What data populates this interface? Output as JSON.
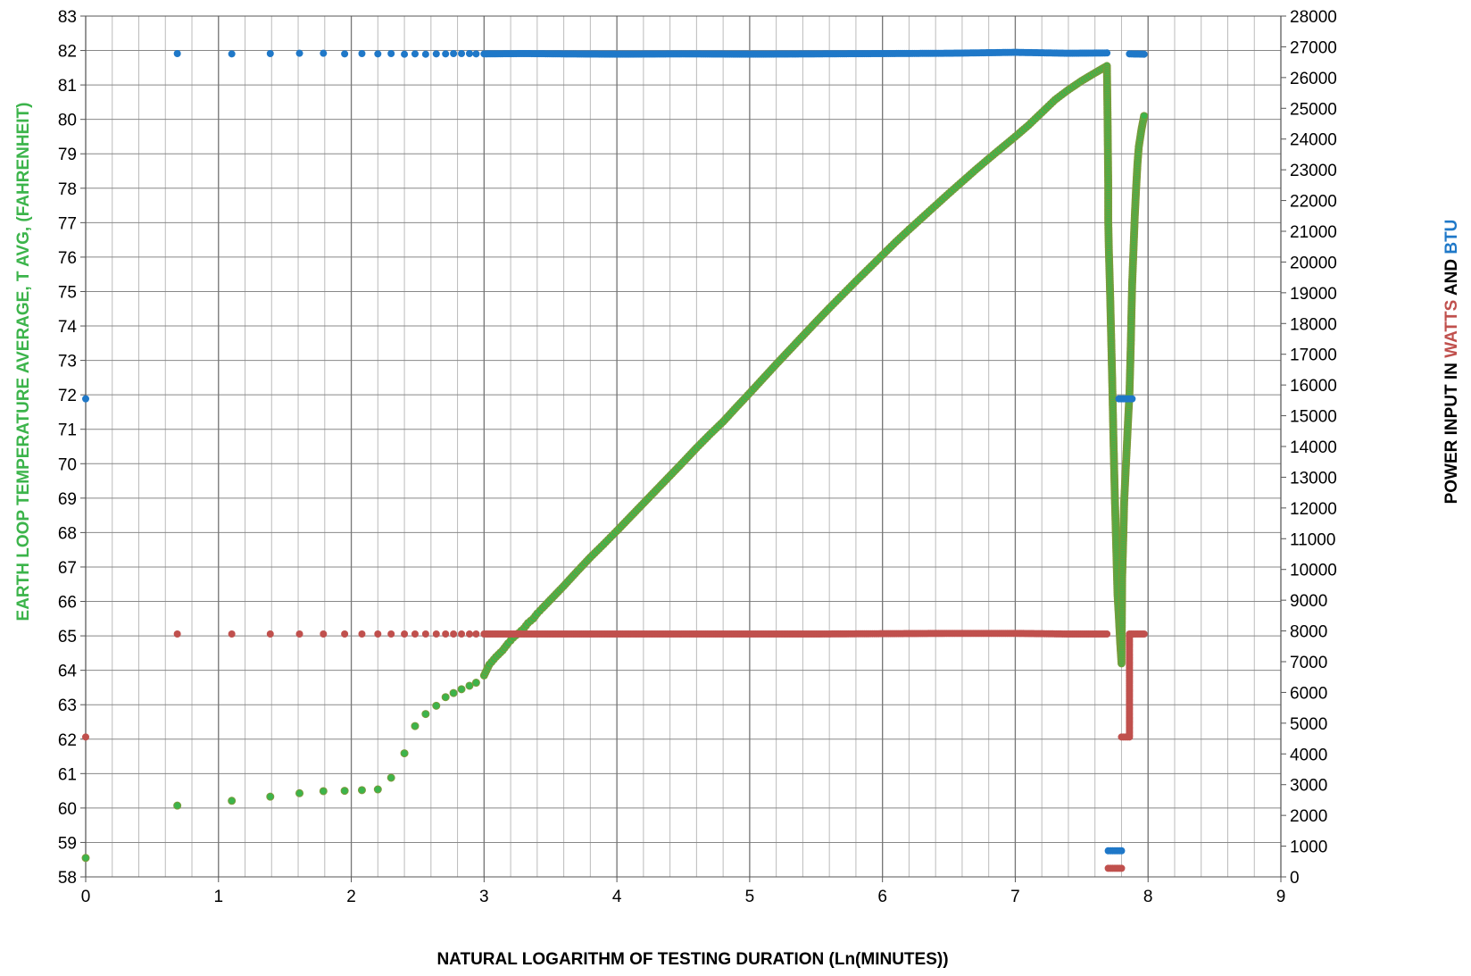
{
  "chart_data": {
    "type": "scatter",
    "xlabel": "NATURAL LOGARITHM OF TESTING DURATION (Ln(MINUTES))",
    "ylabel_left": "EARTH LOOP TEMPERATURE AVERAGE, T AVG, (FAHRENHEIT)",
    "ylabel_right": {
      "prefix": "POWER INPUT IN ",
      "watts": "WATTS",
      "middle": " AND ",
      "btu": "BTU"
    },
    "xlim": [
      0,
      9
    ],
    "ylim_left": [
      58,
      83
    ],
    "ylim_right": [
      0,
      28000
    ],
    "x_ticks": [
      "0",
      "1",
      "2",
      "3",
      "4",
      "5",
      "6",
      "7",
      "8",
      "9"
    ],
    "y_left_ticks": [
      "58",
      "59",
      "60",
      "61",
      "62",
      "63",
      "64",
      "65",
      "66",
      "67",
      "68",
      "69",
      "70",
      "71",
      "72",
      "73",
      "74",
      "75",
      "76",
      "77",
      "78",
      "79",
      "80",
      "81",
      "82",
      "83"
    ],
    "y_right_ticks": [
      "0",
      "1000",
      "2000",
      "3000",
      "4000",
      "5000",
      "6000",
      "7000",
      "8000",
      "9000",
      "10000",
      "11000",
      "12000",
      "13000",
      "14000",
      "15000",
      "16000",
      "17000",
      "18000",
      "19000",
      "20000",
      "21000",
      "22000",
      "23000",
      "24000",
      "25000",
      "26000",
      "27000",
      "28000"
    ],
    "grid": true,
    "colors": {
      "temperature": "#3cb44b",
      "temperature_edge": "#7a9a3a",
      "watts": "#c0504d",
      "btu": "#1f78c8",
      "grid_major": "#888888",
      "grid_minor": "#bbbbbb"
    },
    "series": [
      {
        "axis": "left",
        "color": "#3cb44b",
        "points": [
          [
            0,
            58.55
          ],
          [
            0.69,
            60.07
          ],
          [
            1.1,
            60.21
          ],
          [
            1.39,
            60.33
          ],
          [
            1.61,
            60.43
          ],
          [
            1.79,
            60.49
          ],
          [
            1.95,
            60.5
          ],
          [
            2.08,
            60.52
          ],
          [
            2.2,
            60.54
          ],
          [
            2.3,
            60.88
          ],
          [
            2.4,
            61.59
          ],
          [
            2.48,
            62.38
          ],
          [
            2.56,
            62.73
          ],
          [
            2.64,
            62.97
          ],
          [
            2.71,
            63.22
          ],
          [
            2.77,
            63.34
          ],
          [
            2.83,
            63.45
          ],
          [
            2.89,
            63.55
          ],
          [
            2.94,
            63.64
          ],
          [
            3.0,
            63.85
          ],
          [
            3.04,
            64.17
          ],
          [
            3.09,
            64.39
          ],
          [
            3.14,
            64.58
          ],
          [
            3.18,
            64.78
          ],
          [
            3.22,
            64.95
          ],
          [
            3.26,
            65.08
          ],
          [
            3.3,
            65.22
          ],
          [
            3.33,
            65.37
          ],
          [
            3.37,
            65.5
          ],
          [
            3.4,
            65.65
          ],
          [
            3.44,
            65.81
          ],
          [
            3.5,
            66.05
          ],
          [
            3.6,
            66.45
          ],
          [
            3.7,
            66.87
          ],
          [
            3.8,
            67.28
          ],
          [
            3.9,
            67.66
          ],
          [
            4.0,
            68.05
          ],
          [
            4.1,
            68.45
          ],
          [
            4.2,
            68.85
          ],
          [
            4.3,
            69.25
          ],
          [
            4.4,
            69.65
          ],
          [
            4.5,
            70.05
          ],
          [
            4.6,
            70.46
          ],
          [
            4.7,
            70.85
          ],
          [
            4.8,
            71.22
          ],
          [
            4.9,
            71.64
          ],
          [
            5.0,
            72.05
          ],
          [
            5.1,
            72.47
          ],
          [
            5.2,
            72.89
          ],
          [
            5.3,
            73.3
          ],
          [
            5.4,
            73.71
          ],
          [
            5.5,
            74.12
          ],
          [
            5.6,
            74.52
          ],
          [
            5.7,
            74.91
          ],
          [
            5.8,
            75.3
          ],
          [
            5.9,
            75.68
          ],
          [
            6.0,
            76.06
          ],
          [
            6.1,
            76.44
          ],
          [
            6.2,
            76.8
          ],
          [
            6.3,
            77.15
          ],
          [
            6.4,
            77.5
          ],
          [
            6.5,
            77.85
          ],
          [
            6.6,
            78.19
          ],
          [
            6.7,
            78.53
          ],
          [
            6.8,
            78.86
          ],
          [
            6.9,
            79.18
          ],
          [
            7.0,
            79.5
          ],
          [
            7.1,
            79.83
          ],
          [
            7.2,
            80.2
          ],
          [
            7.3,
            80.57
          ],
          [
            7.4,
            80.86
          ],
          [
            7.5,
            81.12
          ],
          [
            7.6,
            81.35
          ],
          [
            7.69,
            81.55
          ],
          [
            7.695,
            80.0
          ],
          [
            7.7,
            78.1
          ],
          [
            7.7,
            77.05
          ],
          [
            7.705,
            76.15
          ],
          [
            7.71,
            75.5
          ],
          [
            7.715,
            74.8
          ],
          [
            7.72,
            74.0
          ],
          [
            7.725,
            73.2
          ],
          [
            7.73,
            72.4
          ],
          [
            7.735,
            71.5
          ],
          [
            7.74,
            70.6
          ],
          [
            7.745,
            69.8
          ],
          [
            7.75,
            69.0
          ],
          [
            7.755,
            68.3
          ],
          [
            7.76,
            67.6
          ],
          [
            7.765,
            66.9
          ],
          [
            7.77,
            66.2
          ],
          [
            7.78,
            65.55
          ],
          [
            7.79,
            64.8
          ],
          [
            7.8,
            64.2
          ],
          [
            7.805,
            66.7
          ],
          [
            7.81,
            67.4
          ],
          [
            7.815,
            68.1
          ],
          [
            7.82,
            68.9
          ],
          [
            7.83,
            69.7
          ],
          [
            7.84,
            70.5
          ],
          [
            7.85,
            71.3
          ],
          [
            7.86,
            72.05
          ],
          [
            7.87,
            73.5
          ],
          [
            7.875,
            74.4
          ],
          [
            7.88,
            75.2
          ],
          [
            7.89,
            76.2
          ],
          [
            7.9,
            77.2
          ],
          [
            7.91,
            78.0
          ],
          [
            7.92,
            78.7
          ],
          [
            7.93,
            79.2
          ],
          [
            7.95,
            79.7
          ],
          [
            7.97,
            80.1
          ]
        ]
      },
      {
        "axis": "right",
        "color": "#c0504d",
        "points": [
          [
            0,
            4550
          ],
          [
            0.69,
            7900
          ],
          [
            1.1,
            7900
          ],
          [
            1.39,
            7900
          ],
          [
            1.61,
            7900
          ],
          [
            1.79,
            7900
          ],
          [
            1.95,
            7900
          ],
          [
            2.08,
            7900
          ],
          [
            2.2,
            7900
          ],
          [
            2.3,
            7900
          ],
          [
            2.4,
            7900
          ],
          [
            2.48,
            7900
          ],
          [
            2.56,
            7900
          ],
          [
            2.64,
            7900
          ],
          [
            2.71,
            7900
          ],
          [
            2.77,
            7900
          ],
          [
            2.83,
            7900
          ],
          [
            2.89,
            7900
          ],
          [
            2.94,
            7900
          ],
          [
            3.0,
            7900
          ],
          [
            3.3,
            7900
          ],
          [
            3.6,
            7900
          ],
          [
            4.0,
            7900
          ],
          [
            4.5,
            7900
          ],
          [
            5.0,
            7900
          ],
          [
            5.5,
            7900
          ],
          [
            6.0,
            7910
          ],
          [
            6.5,
            7920
          ],
          [
            7.0,
            7920
          ],
          [
            7.4,
            7900
          ],
          [
            7.69,
            7900
          ],
          [
            7.7,
            280
          ],
          [
            7.8,
            280
          ],
          [
            7.8,
            4550
          ],
          [
            7.86,
            4550
          ],
          [
            7.86,
            7900
          ],
          [
            7.97,
            7900
          ]
        ]
      },
      {
        "axis": "right",
        "color": "#1f78c8",
        "points": [
          [
            0,
            15550
          ],
          [
            0.69,
            26780
          ],
          [
            1.1,
            26770
          ],
          [
            1.39,
            26780
          ],
          [
            1.61,
            26790
          ],
          [
            1.79,
            26790
          ],
          [
            1.95,
            26770
          ],
          [
            2.08,
            26780
          ],
          [
            2.2,
            26770
          ],
          [
            2.3,
            26780
          ],
          [
            2.4,
            26760
          ],
          [
            2.48,
            26770
          ],
          [
            2.56,
            26760
          ],
          [
            2.64,
            26770
          ],
          [
            2.71,
            26770
          ],
          [
            2.77,
            26780
          ],
          [
            2.83,
            26780
          ],
          [
            2.89,
            26780
          ],
          [
            2.94,
            26770
          ],
          [
            3.0,
            26770
          ],
          [
            3.3,
            26780
          ],
          [
            3.6,
            26770
          ],
          [
            4.0,
            26760
          ],
          [
            4.5,
            26770
          ],
          [
            5.0,
            26760
          ],
          [
            5.5,
            26770
          ],
          [
            6.0,
            26780
          ],
          [
            6.5,
            26790
          ],
          [
            7.0,
            26820
          ],
          [
            7.4,
            26790
          ],
          [
            7.69,
            26800
          ],
          [
            7.7,
            850
          ],
          [
            7.8,
            850
          ],
          [
            7.78,
            15550
          ],
          [
            7.88,
            15550
          ],
          [
            7.86,
            26770
          ],
          [
            7.97,
            26760
          ]
        ]
      }
    ]
  }
}
